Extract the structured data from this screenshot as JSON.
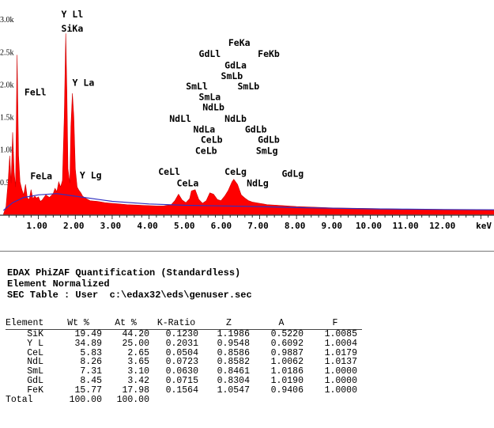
{
  "chart_data": {
    "type": "area",
    "xlabel": "keV",
    "xlim": [
      0.0,
      13.4
    ],
    "ylim": [
      0,
      3050
    ],
    "x_ticks": [
      "1.00",
      "2.00",
      "3.00",
      "4.00",
      "5.00",
      "6.00",
      "7.00",
      "8.00",
      "9.00",
      "10.00",
      "11.00",
      "12.00"
    ],
    "x_tick_values": [
      1,
      2,
      3,
      4,
      5,
      6,
      7,
      8,
      9,
      10,
      11,
      12
    ],
    "y_ticks": [
      "3.0k",
      "2.5k",
      "2.0k",
      "1.5k",
      "1.0k",
      "0.5k"
    ],
    "y_tick_values": [
      3000,
      2500,
      2000,
      1500,
      1000,
      500
    ],
    "spectrum": [
      [
        0.05,
        0
      ],
      [
        0.12,
        120
      ],
      [
        0.18,
        520
      ],
      [
        0.22,
        900
      ],
      [
        0.26,
        480
      ],
      [
        0.3,
        1260
      ],
      [
        0.34,
        650
      ],
      [
        0.38,
        420
      ],
      [
        0.42,
        2450
      ],
      [
        0.46,
        900
      ],
      [
        0.5,
        500
      ],
      [
        0.55,
        380
      ],
      [
        0.6,
        300
      ],
      [
        0.65,
        460
      ],
      [
        0.7,
        250
      ],
      [
        0.75,
        230
      ],
      [
        0.8,
        380
      ],
      [
        0.85,
        240
      ],
      [
        0.9,
        280
      ],
      [
        0.95,
        250
      ],
      [
        1.0,
        270
      ],
      [
        1.05,
        200
      ],
      [
        1.1,
        220
      ],
      [
        1.2,
        300
      ],
      [
        1.3,
        260
      ],
      [
        1.4,
        320
      ],
      [
        1.45,
        400
      ],
      [
        1.5,
        350
      ],
      [
        1.55,
        500
      ],
      [
        1.6,
        420
      ],
      [
        1.65,
        520
      ],
      [
        1.7,
        1500
      ],
      [
        1.74,
        2780
      ],
      [
        1.77,
        1900
      ],
      [
        1.8,
        700
      ],
      [
        1.85,
        480
      ],
      [
        1.88,
        1350
      ],
      [
        1.92,
        1860
      ],
      [
        1.96,
        1500
      ],
      [
        2.0,
        700
      ],
      [
        2.05,
        420
      ],
      [
        2.1,
        370
      ],
      [
        2.15,
        330
      ],
      [
        2.2,
        280
      ],
      [
        2.3,
        240
      ],
      [
        2.4,
        210
      ],
      [
        2.6,
        200
      ],
      [
        2.8,
        180
      ],
      [
        3.0,
        170
      ],
      [
        3.2,
        160
      ],
      [
        3.4,
        150
      ],
      [
        3.6,
        145
      ],
      [
        3.8,
        140
      ],
      [
        4.0,
        135
      ],
      [
        4.2,
        130
      ],
      [
        4.4,
        130
      ],
      [
        4.6,
        150
      ],
      [
        4.7,
        210
      ],
      [
        4.8,
        310
      ],
      [
        4.9,
        220
      ],
      [
        5.0,
        180
      ],
      [
        5.1,
        240
      ],
      [
        5.15,
        360
      ],
      [
        5.25,
        380
      ],
      [
        5.35,
        230
      ],
      [
        5.45,
        170
      ],
      [
        5.55,
        210
      ],
      [
        5.65,
        330
      ],
      [
        5.75,
        310
      ],
      [
        5.85,
        230
      ],
      [
        5.95,
        210
      ],
      [
        6.05,
        280
      ],
      [
        6.15,
        370
      ],
      [
        6.25,
        500
      ],
      [
        6.3,
        540
      ],
      [
        6.4,
        460
      ],
      [
        6.5,
        300
      ],
      [
        6.6,
        250
      ],
      [
        6.7,
        210
      ],
      [
        6.8,
        190
      ],
      [
        7.0,
        170
      ],
      [
        7.1,
        160
      ],
      [
        7.2,
        150
      ],
      [
        7.5,
        140
      ],
      [
        8.0,
        120
      ],
      [
        8.5,
        110
      ],
      [
        9.0,
        100
      ],
      [
        10.0,
        90
      ],
      [
        11.0,
        80
      ],
      [
        12.0,
        75
      ],
      [
        13.0,
        70
      ],
      [
        13.4,
        70
      ]
    ],
    "background": [
      [
        0.05,
        60
      ],
      [
        0.3,
        180
      ],
      [
        0.6,
        260
      ],
      [
        1.0,
        300
      ],
      [
        1.5,
        320
      ],
      [
        2.0,
        280
      ],
      [
        3.0,
        200
      ],
      [
        4.0,
        160
      ],
      [
        5.0,
        140
      ],
      [
        6.0,
        130
      ],
      [
        7.0,
        120
      ],
      [
        8.0,
        105
      ],
      [
        9.0,
        95
      ],
      [
        10.0,
        85
      ],
      [
        11.0,
        80
      ],
      [
        12.0,
        75
      ],
      [
        13.4,
        70
      ]
    ],
    "colors": {
      "spectrum": "#ff0000",
      "background": "#3030c0"
    },
    "peak_labels": [
      {
        "text": "Y Ll",
        "x": 1.62,
        "y": 3025
      },
      {
        "text": "SiKa",
        "x": 1.62,
        "y": 2810
      },
      {
        "text": "Y La",
        "x": 1.92,
        "y": 1975
      },
      {
        "text": "FeLl",
        "x": 0.62,
        "y": 1830
      },
      {
        "text": "FeLa",
        "x": 0.78,
        "y": 540
      },
      {
        "text": "Y Lg",
        "x": 2.12,
        "y": 550
      },
      {
        "text": "FeKa",
        "x": 6.15,
        "y": 2590
      },
      {
        "text": "FeKb",
        "x": 6.95,
        "y": 2420
      },
      {
        "text": "GdLl",
        "x": 5.35,
        "y": 2420
      },
      {
        "text": "GdLa",
        "x": 6.05,
        "y": 2240
      },
      {
        "text": "SmLb",
        "x": 5.95,
        "y": 2080
      },
      {
        "text": "SmLl",
        "x": 5.0,
        "y": 1920
      },
      {
        "text": "SmLb",
        "x": 6.4,
        "y": 1920
      },
      {
        "text": "SmLa",
        "x": 5.35,
        "y": 1755
      },
      {
        "text": "NdLb",
        "x": 5.45,
        "y": 1600
      },
      {
        "text": "NdLl",
        "x": 4.55,
        "y": 1420
      },
      {
        "text": "NdLb",
        "x": 6.05,
        "y": 1420
      },
      {
        "text": "NdLa",
        "x": 5.2,
        "y": 1260
      },
      {
        "text": "GdLb",
        "x": 6.6,
        "y": 1260
      },
      {
        "text": "CeLb",
        "x": 5.4,
        "y": 1100
      },
      {
        "text": "GdLb",
        "x": 6.95,
        "y": 1100
      },
      {
        "text": "CeLb",
        "x": 5.25,
        "y": 930
      },
      {
        "text": "SmLg",
        "x": 6.9,
        "y": 930
      },
      {
        "text": "CeLl",
        "x": 4.25,
        "y": 610
      },
      {
        "text": "CeLg",
        "x": 6.05,
        "y": 610
      },
      {
        "text": "GdLg",
        "x": 7.6,
        "y": 580
      },
      {
        "text": "CeLa",
        "x": 4.75,
        "y": 430
      },
      {
        "text": "NdLg",
        "x": 6.65,
        "y": 430
      }
    ]
  },
  "report": {
    "title": "EDAX PhiZAF Quantification (Standardless)",
    "line2": "Element Normalized",
    "line3": "SEC Table : User  c:\\edax32\\eds\\genuser.sec"
  },
  "table": {
    "headers": [
      "Element",
      "Wt %",
      "At %",
      "K-Ratio",
      "Z",
      "A",
      "F"
    ],
    "rows": [
      [
        "SiK",
        "19.49",
        "44.20",
        "0.1230",
        "1.1986",
        "0.5220",
        "1.0085"
      ],
      [
        "Y L",
        "34.89",
        "25.00",
        "0.2031",
        "0.9548",
        "0.6092",
        "1.0004"
      ],
      [
        "CeL",
        "5.83",
        "2.65",
        "0.0504",
        "0.8586",
        "0.9887",
        "1.0179"
      ],
      [
        "NdL",
        "8.26",
        "3.65",
        "0.0723",
        "0.8582",
        "1.0062",
        "1.0137"
      ],
      [
        "SmL",
        "7.31",
        "3.10",
        "0.0630",
        "0.8461",
        "1.0186",
        "1.0000"
      ],
      [
        "GdL",
        "8.45",
        "3.42",
        "0.0715",
        "0.8304",
        "1.0190",
        "1.0000"
      ],
      [
        "FeK",
        "15.77",
        "17.98",
        "0.1564",
        "1.0547",
        "0.9406",
        "1.0000"
      ],
      [
        "Total",
        "100.00",
        "100.00",
        "",
        "",
        "",
        ""
      ]
    ]
  }
}
